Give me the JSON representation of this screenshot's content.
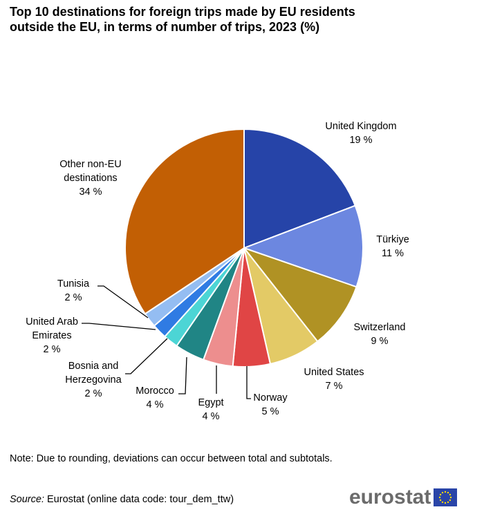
{
  "title": "Top 10 destinations for foreign trips made by EU residents outside the EU, in terms of number of trips, 2023 (%)",
  "note": "Note: Due to rounding, deviations can occur between total and subtotals.",
  "source": {
    "label": "Source:",
    "text": " Eurostat (online data code: tour_dem_ttw)"
  },
  "logo": {
    "text": "eurostat",
    "flag_color": "#2a45a8",
    "star_color": "#ffdd00"
  },
  "chart_data": {
    "type": "pie",
    "unit": "%",
    "slices": [
      {
        "label": "United Kingdom",
        "value": 19,
        "value_label": "19 %",
        "color": "#2644a8"
      },
      {
        "label": "Türkiye",
        "value": 11,
        "value_label": "11 %",
        "color": "#6c87e0"
      },
      {
        "label": "Switzerland",
        "value": 9,
        "value_label": "9 %",
        "color": "#b09224"
      },
      {
        "label": "United States",
        "value": 7,
        "value_label": "7 %",
        "color": "#e3ca66"
      },
      {
        "label": "Norway",
        "value": 5,
        "value_label": "5 %",
        "color": "#e04545"
      },
      {
        "label": "Egypt",
        "value": 4,
        "value_label": "4 %",
        "color": "#ed8e8e"
      },
      {
        "label": "Morocco",
        "value": 4,
        "value_label": "4 %",
        "color": "#208585"
      },
      {
        "label": "Bosnia and Herzegovina",
        "value": 2,
        "value_label": "2 %",
        "color": "#4cd5d5"
      },
      {
        "label": "United Arab Emirates",
        "value": 2,
        "value_label": "2 %",
        "color": "#2f7be3"
      },
      {
        "label": "Tunisia",
        "value": 2,
        "value_label": "2 %",
        "color": "#94bdf2"
      },
      {
        "label": "Other non-EU destinations",
        "value": 34,
        "value_label": "34 %",
        "color": "#c25f04"
      }
    ]
  }
}
